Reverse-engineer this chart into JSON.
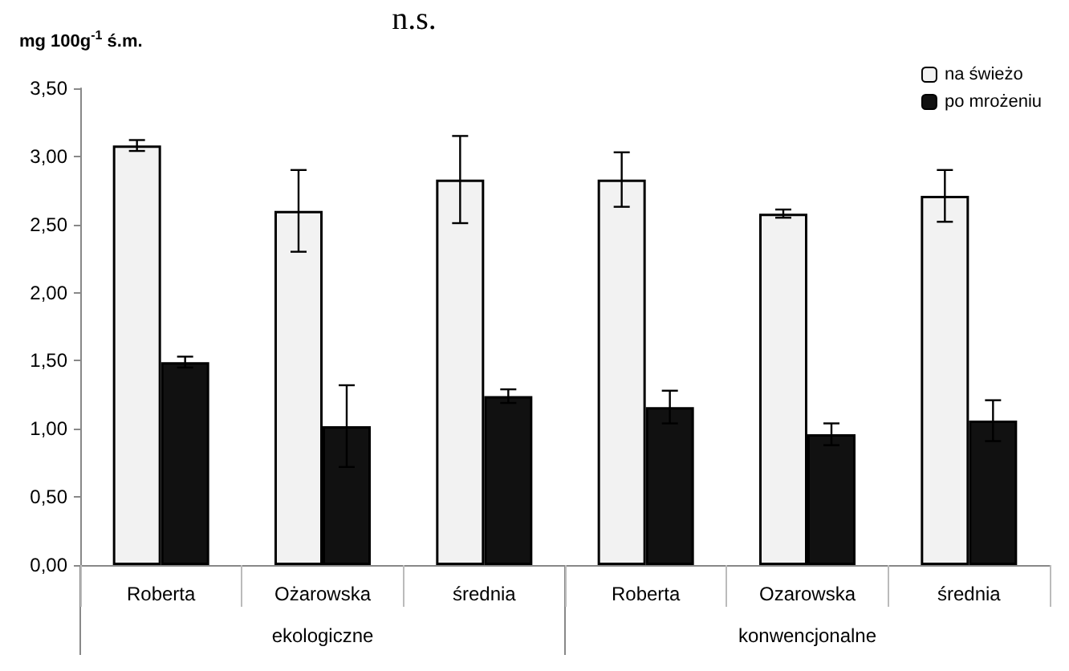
{
  "chart_data": {
    "type": "bar",
    "ylabel": "mg 100g$^{-1}$ ś.m.",
    "categories": [
      "Roberta",
      "Ożarowska",
      "średnia",
      "Roberta",
      "Ozarowska",
      "średnia"
    ],
    "series": [
      {
        "name": "na świeżo",
        "color": "#f2f2f2",
        "values": [
          3.08,
          2.6,
          2.83,
          2.83,
          2.58,
          2.71
        ],
        "errors": [
          0.04,
          0.3,
          0.32,
          0.2,
          0.03,
          0.19
        ]
      },
      {
        "name": "po mrożeniu",
        "color": "#111111",
        "values": [
          1.49,
          1.02,
          1.24,
          1.16,
          0.96,
          1.06
        ],
        "errors": [
          0.04,
          0.3,
          0.05,
          0.12,
          0.08,
          0.15
        ]
      }
    ],
    "ylim": [
      0,
      3.5
    ],
    "yticks": [
      {
        "value": 0,
        "label": "0,00"
      },
      {
        "value": 0.5,
        "label": "0,50"
      },
      {
        "value": 1,
        "label": "1,00"
      },
      {
        "value": 1.5,
        "label": "1,50"
      },
      {
        "value": 2,
        "label": "2,00"
      },
      {
        "value": 2.5,
        "label": "2,50"
      },
      {
        "value": 3,
        "label": "3,00"
      },
      {
        "value": 3.5,
        "label": "3,50"
      }
    ],
    "annotations": [
      "n.s.",
      "ekologiczne",
      "konwencjonalne"
    ],
    "legend": "top right",
    "grid": false
  }
}
